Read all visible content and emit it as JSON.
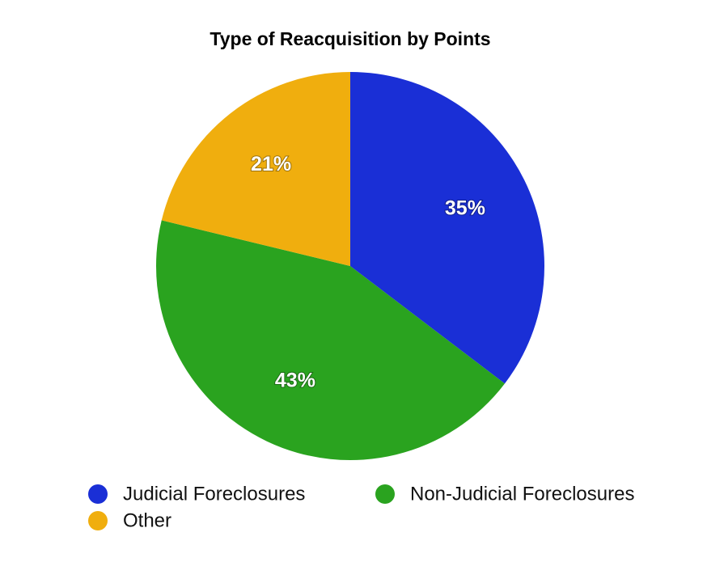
{
  "chart_data": {
    "type": "pie",
    "title": "Type of Reacquisition by Points",
    "categories": [
      "Judicial Foreclosures",
      "Non-Judicial Foreclosures",
      "Other"
    ],
    "values": [
      35,
      43,
      21
    ],
    "value_labels": [
      "35%",
      "43%",
      "21%"
    ],
    "colors": [
      "#1a2fd6",
      "#2aa31f",
      "#f0ae0e"
    ],
    "legend": "bottom"
  }
}
